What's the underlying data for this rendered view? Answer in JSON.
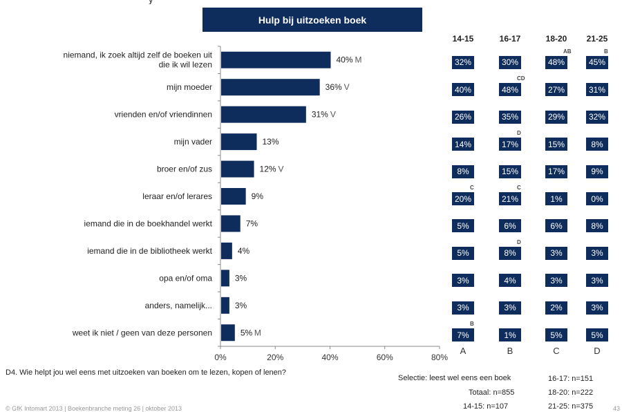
{
  "title": "Hulp bij uitzoeken boek",
  "top_fragment": "y",
  "question": "D4. Wie helpt jou wel eens met uitzoeken van boeken om te lezen, kopen of lenen?",
  "footer": {
    "left": "© GfK Intomart 2013 | Boekenbranche meting 26 | oktober 2013",
    "page": "43",
    "selectie": "Selectie: leest wel eens een boek",
    "totaal": "Totaal: n=855",
    "n_14_15": "14-15: n=107",
    "n_16_17": "16-17: n=151",
    "n_18_20": "18-20: n=222",
    "n_21_25": "21-25: n=375"
  },
  "colors": {
    "bar": "#0f2d5c",
    "axis": "#888888"
  },
  "chart_data": {
    "type": "bar",
    "orientation": "horizontal",
    "categories": [
      "niemand, ik zoek altijd zelf de boeken uit die ik wil lezen",
      "mijn moeder",
      "vrienden en/of vriendinnen",
      "mijn vader",
      "broer en/of zus",
      "leraar en/of lerares",
      "iemand die in de boekhandel werkt",
      "iemand die in de bibliotheek werkt",
      "opa en/of oma",
      "anders, namelijk...",
      "weet ik niet / geen van deze personen"
    ],
    "values": [
      40,
      36,
      31,
      13,
      12,
      9,
      7,
      4,
      3,
      3,
      5
    ],
    "value_labels": [
      "40%",
      "36%",
      "31%",
      "13%",
      "12%",
      "9%",
      "7%",
      "4%",
      "3%",
      "3%",
      "5%"
    ],
    "markers": [
      "M",
      "V",
      "V",
      "",
      "V",
      "",
      "",
      "",
      "",
      "",
      "M"
    ],
    "xlim": [
      0,
      80
    ],
    "xticks": [
      "0%",
      "20%",
      "40%",
      "60%",
      "80%"
    ],
    "grid": false
  },
  "age_table": {
    "columns": [
      {
        "head": "14-15",
        "letter": "A"
      },
      {
        "head": "16-17",
        "letter": "B"
      },
      {
        "head": "18-20",
        "letter": "C"
      },
      {
        "head": "21-25",
        "letter": "D"
      }
    ],
    "rows": [
      [
        "32%",
        "30%",
        "48%",
        "45%"
      ],
      [
        "40%",
        "48%",
        "27%",
        "31%"
      ],
      [
        "26%",
        "35%",
        "29%",
        "32%"
      ],
      [
        "14%",
        "17%",
        "15%",
        "8%"
      ],
      [
        "8%",
        "15%",
        "17%",
        "9%"
      ],
      [
        "20%",
        "21%",
        "1%",
        "0%"
      ],
      [
        "5%",
        "6%",
        "6%",
        "8%"
      ],
      [
        "5%",
        "8%",
        "3%",
        "3%"
      ],
      [
        "3%",
        "4%",
        "3%",
        "3%"
      ],
      [
        "3%",
        "3%",
        "2%",
        "3%"
      ],
      [
        "7%",
        "1%",
        "5%",
        "5%"
      ]
    ],
    "significance": [
      [
        "",
        "",
        "AB",
        "B"
      ],
      [
        "",
        "CD",
        "",
        ""
      ],
      [
        "",
        "",
        "",
        ""
      ],
      [
        "",
        "D",
        "",
        ""
      ],
      [
        "",
        "",
        "",
        ""
      ],
      [
        "C",
        "C",
        "",
        ""
      ],
      [
        "",
        "",
        "",
        ""
      ],
      [
        "",
        "D",
        "",
        ""
      ],
      [
        "",
        "",
        "",
        ""
      ],
      [
        "",
        "",
        "",
        ""
      ],
      [
        "B",
        "",
        "",
        ""
      ]
    ]
  }
}
